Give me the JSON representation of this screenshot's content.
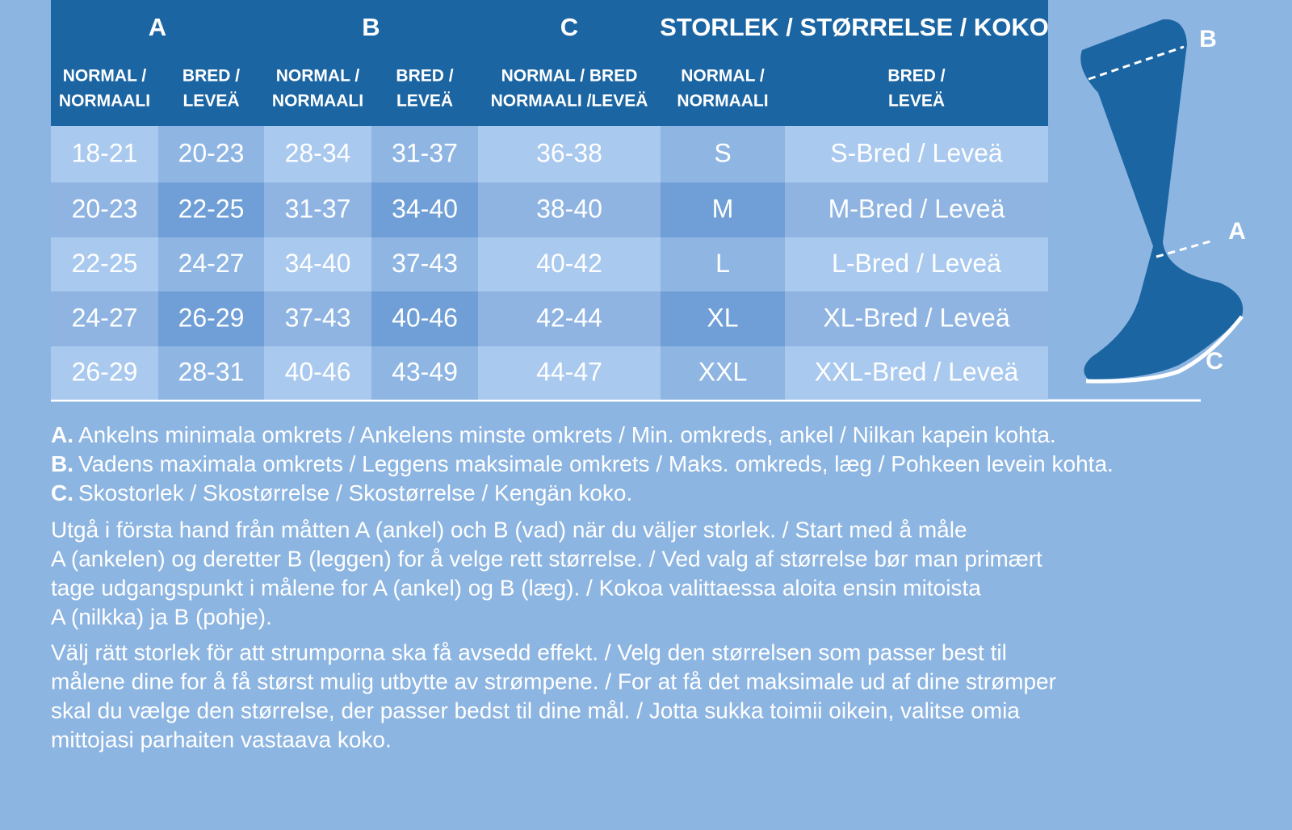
{
  "table": {
    "group_headers": [
      "A",
      "B",
      "C",
      "STORLEK / STØRRELSE / KOKO"
    ],
    "sub_headers": [
      [
        "NORMAL /",
        "NORMAALI"
      ],
      [
        "BRED /",
        "LEVEÄ"
      ],
      [
        "NORMAL /",
        "NORMAALI"
      ],
      [
        "BRED /",
        "LEVEÄ"
      ],
      [
        "NORMAL / BRED",
        "NORMAALI /LEVEÄ"
      ],
      [
        "NORMAL /",
        "NORMAALI"
      ],
      [
        "BRED /",
        "LEVEÄ"
      ]
    ],
    "rows": [
      [
        "18-21",
        "20-23",
        "28-34",
        "31-37",
        "36-38",
        "S",
        "S-Bred / Leveä"
      ],
      [
        "20-23",
        "22-25",
        "31-37",
        "34-40",
        "38-40",
        "M",
        "M-Bred / Leveä"
      ],
      [
        "22-25",
        "24-27",
        "34-40",
        "37-43",
        "40-42",
        "L",
        "L-Bred / Leveä"
      ],
      [
        "24-27",
        "26-29",
        "37-43",
        "40-46",
        "42-44",
        "XL",
        "XL-Bred / Leveä"
      ],
      [
        "26-29",
        "28-31",
        "40-46",
        "43-49",
        "44-47",
        "XXL",
        "XXL-Bred / Leveä"
      ]
    ]
  },
  "notes": [
    {
      "key": "A.",
      "text": "Ankelns minimala omkrets / Ankelens minste omkrets / Min. omkreds, ankel / Nilkan kapein kohta."
    },
    {
      "key": "B.",
      "text": "Vadens maximala omkrets / Leggens maksimale omkrets / Maks. omkreds, læg / Pohkeen levein kohta."
    },
    {
      "key": "C.",
      "text": "Skostorlek / Skostørrelse / Skostørrelse / Kengän koko."
    }
  ],
  "paragraphs": [
    [
      "Utgå i första hand från måtten A (ankel) och B (vad) när du väljer storlek. / Start med å måle",
      "A (ankelen) og deretter B (leggen) for å velge rett størrelse. / Ved valg af størrelse bør man primært",
      "tage udgangspunkt i målene for A (ankel) og B (læg). / Kokoa valittaessa aloita ensin mitoista",
      "A (nilkka) ja B (pohje)."
    ],
    [
      "Välj rätt storlek för att strumporna ska få avsedd effekt. / Velg den størrelsen som passer best til",
      "målene dine for å få størst mulig utbytte av strømpene. / For at få det maksimale ud af dine strømper",
      "skal du vælge den størrelse, der passer bedst til dine mål. / Jotta sukka toimii oikein, valitse omia",
      "mittojasi parhaiten vastaava koko."
    ]
  ],
  "figure": {
    "labels": [
      "B",
      "A",
      "C"
    ]
  }
}
